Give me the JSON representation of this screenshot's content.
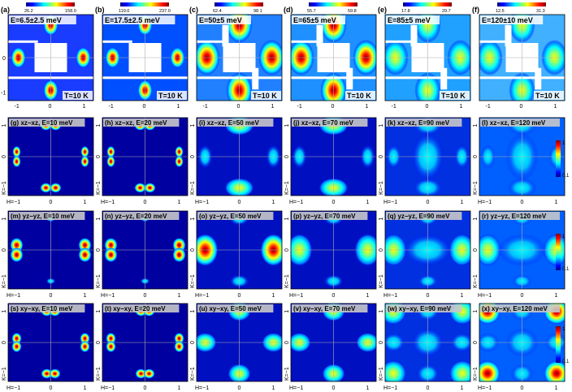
{
  "colors": {
    "frame": "#000000",
    "gridline": "#b0b0b0",
    "label_text": "#000000",
    "label_bg": "#ffffff",
    "sim_label_bg": "#c8c8c8",
    "mask_white": "#ffffff",
    "colormap_jet": [
      "#00007f",
      "#0000ff",
      "#007fff",
      "#00ffff",
      "#7fff7f",
      "#ffff00",
      "#ff7f00",
      "#ff0000",
      "#7f0000"
    ]
  },
  "top_row": {
    "x_ticks": [
      "-1",
      "0",
      "1"
    ],
    "y_ticks": [
      "0",
      "-1"
    ],
    "temperature": "T=10 K",
    "panels": [
      {
        "id": "a",
        "letter": "(a)",
        "energy": "E=6.5±2.5 meV",
        "cbar_min": "26.2",
        "cbar_max": "158.0"
      },
      {
        "id": "b",
        "letter": "(b)",
        "energy": "E=17.5±2.5 meV",
        "cbar_min": "119.0",
        "cbar_max": "237.0"
      },
      {
        "id": "c",
        "letter": "(c)",
        "energy": "E=50±5 meV",
        "cbar_min": "62.4",
        "cbar_max": "98.1"
      },
      {
        "id": "d",
        "letter": "(d)",
        "energy": "E=65±5 meV",
        "cbar_min": "55.7",
        "cbar_max": "59.8"
      },
      {
        "id": "e",
        "letter": "(e)",
        "energy": "E=85±5 meV",
        "cbar_min": "17.8",
        "cbar_max": "29.7"
      },
      {
        "id": "f",
        "letter": "(f)",
        "energy": "E=120±10 meV",
        "cbar_min": "12.5",
        "cbar_max": "31.3"
      }
    ]
  },
  "sim_rows": {
    "x_ticks": [
      "H=−1",
      "0",
      "1"
    ],
    "y_ticks": [
      "K=−1",
      "0",
      "1"
    ],
    "colorbar_ticks": [
      "1",
      "0.1"
    ],
    "rows": [
      {
        "orbital": "xz−xz",
        "panels": [
          {
            "id": "g",
            "label": "(g) xz−xz, E=10 meV"
          },
          {
            "id": "h",
            "label": "(h) xz−xz, E=20 meV"
          },
          {
            "id": "i",
            "label": "(i) xz−xz, E=50 meV"
          },
          {
            "id": "j",
            "label": "(j) xz−xz, E=70 meV"
          },
          {
            "id": "k",
            "label": "(k) xz−xz, E=90 meV"
          },
          {
            "id": "l",
            "label": "(l) xz−xz, E=120 meV"
          }
        ]
      },
      {
        "orbital": "yz−yz",
        "panels": [
          {
            "id": "m",
            "label": "(m) yz−yz, E=10 meV"
          },
          {
            "id": "n",
            "label": "(n) yz−yz, E=20 meV"
          },
          {
            "id": "o",
            "label": "(o) yz−yz, E=50 meV"
          },
          {
            "id": "p",
            "label": "(p) yz−yz, E=70 meV"
          },
          {
            "id": "q",
            "label": "(q) yz−yz, E=90 meV"
          },
          {
            "id": "r",
            "label": "(r) yz−yz, E=120 meV"
          }
        ]
      },
      {
        "orbital": "xy−xy",
        "panels": [
          {
            "id": "s",
            "label": "(s) xy−xy, E=10 meV"
          },
          {
            "id": "t",
            "label": "(t) xy−xy, E=20 meV"
          },
          {
            "id": "u",
            "label": "(u) xy−xy, E=50 meV"
          },
          {
            "id": "v",
            "label": "(v) xy−xy, E=70 meV"
          },
          {
            "id": "w",
            "label": "(w) xy−xy, E=90 meV"
          },
          {
            "id": "x",
            "label": "(x) xy−xy, E=120 meV"
          }
        ]
      }
    ]
  }
}
